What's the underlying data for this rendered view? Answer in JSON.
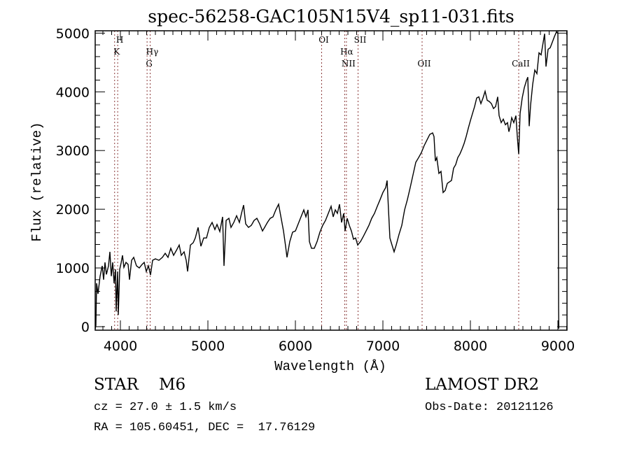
{
  "chart_data": {
    "type": "line",
    "title": "spec-56258-GAC105N15V4_sp11-031.fits",
    "xlabel": "Wavelength (Å)",
    "ylabel": "Flux (relative)",
    "xlim": [
      3712,
      9104
    ],
    "ylim": [
      -60,
      5040
    ],
    "xticks": [
      4000,
      5000,
      6000,
      7000,
      8000,
      9000
    ],
    "xtick_labels": [
      "4000",
      "5000",
      "6000",
      "7000",
      "8000",
      "9000"
    ],
    "x_minor_step": 100,
    "yticks": [
      0,
      1000,
      2000,
      3000,
      4000,
      5000
    ],
    "ytick_labels": [
      "0",
      "1000",
      "2000",
      "3000",
      "4000",
      "5000"
    ],
    "y_minor_step": 200,
    "grid": false,
    "line_color": "#000000",
    "marker_color": "#8b3a3a",
    "series": [
      {
        "name": "spectrum",
        "x": [
          3712,
          3720,
          3728,
          3744,
          3768,
          3792,
          3808,
          3824,
          3840,
          3864,
          3880,
          3896,
          3912,
          3928,
          3944,
          3952,
          3968,
          3976,
          3992,
          4008,
          4024,
          4040,
          4064,
          4088,
          4104,
          4128,
          4152,
          4184,
          4216,
          4248,
          4272,
          4296,
          4320,
          4344,
          4368,
          4400,
          4440,
          4480,
          4512,
          4544,
          4576,
          4608,
          4640,
          4672,
          4696,
          4728,
          4752,
          4768,
          4800,
          4832,
          4856,
          4888,
          4920,
          4952,
          4984,
          5016,
          5048,
          5080,
          5104,
          5136,
          5168,
          5184,
          5208,
          5240,
          5264,
          5296,
          5328,
          5360,
          5384,
          5408,
          5432,
          5464,
          5496,
          5528,
          5560,
          5592,
          5624,
          5648,
          5680,
          5712,
          5744,
          5776,
          5808,
          5832,
          5864,
          5888,
          5904,
          5936,
          5968,
          6000,
          6032,
          6064,
          6096,
          6120,
          6144,
          6160,
          6184,
          6216,
          6248,
          6280,
          6312,
          6344,
          6376,
          6408,
          6432,
          6456,
          6480,
          6504,
          6528,
          6552,
          6568,
          6592,
          6616,
          6640,
          6664,
          6688,
          6712,
          6744,
          6776,
          6808,
          6840,
          6872,
          6904,
          6936,
          6968,
          7000,
          7032,
          7048,
          7064,
          7080,
          7104,
          7128,
          7152,
          7184,
          7216,
          7248,
          7280,
          7312,
          7344,
          7376,
          7408,
          7440,
          7472,
          7504,
          7536,
          7568,
          7584,
          7600,
          7616,
          7640,
          7664,
          7688,
          7712,
          7736,
          7760,
          7784,
          7808,
          7832,
          7856,
          7880,
          7904,
          7928,
          7952,
          7976,
          8000,
          8024,
          8048,
          8072,
          8096,
          8120,
          8144,
          8168,
          8192,
          8216,
          8240,
          8264,
          8288,
          8312,
          8328,
          8352,
          8376,
          8400,
          8424,
          8440,
          8456,
          8472,
          8496,
          8520,
          8536,
          8552,
          8568,
          8592,
          8616,
          8640,
          8656,
          8672,
          8688,
          8712,
          8736,
          8760,
          8784,
          8808,
          8832,
          8848,
          8864,
          8888,
          8912,
          8936,
          8960,
          8984,
          9000,
          9008,
          9010
        ],
        "y": [
          -40,
          25,
          740,
          560,
          860,
          1035,
          800,
          1095,
          890,
          1035,
          1275,
          860,
          1095,
          740,
          975,
          260,
          940,
          200,
          975,
          1085,
          1215,
          1010,
          1095,
          1060,
          800,
          1130,
          1180,
          1035,
          1000,
          1060,
          1095,
          940,
          1035,
          880,
          1130,
          1155,
          1130,
          1180,
          1250,
          1180,
          1335,
          1215,
          1300,
          1390,
          1215,
          1275,
          1130,
          940,
          1390,
          1430,
          1510,
          1690,
          1370,
          1510,
          1510,
          1690,
          1775,
          1655,
          1740,
          1620,
          1870,
          1035,
          1810,
          1845,
          1690,
          1775,
          1890,
          1775,
          1930,
          2070,
          1750,
          1690,
          1725,
          1810,
          1845,
          1750,
          1630,
          1690,
          1775,
          1845,
          1870,
          1990,
          2085,
          1890,
          1630,
          1370,
          1180,
          1450,
          1610,
          1630,
          1750,
          1870,
          1990,
          1870,
          1990,
          1450,
          1335,
          1335,
          1450,
          1610,
          1725,
          1810,
          1930,
          2050,
          1870,
          1990,
          1930,
          2085,
          1775,
          1930,
          1630,
          1845,
          1725,
          1630,
          1490,
          1510,
          1390,
          1450,
          1535,
          1630,
          1725,
          1845,
          1930,
          2050,
          2165,
          2285,
          2370,
          2490,
          1990,
          1510,
          1390,
          1275,
          1390,
          1570,
          1725,
          1990,
          2165,
          2370,
          2585,
          2800,
          2880,
          2965,
          3085,
          3180,
          3275,
          3300,
          3240,
          2820,
          2880,
          2610,
          2645,
          2285,
          2320,
          2440,
          2465,
          2490,
          2700,
          2760,
          2880,
          2940,
          3025,
          3120,
          3240,
          3380,
          3510,
          3630,
          3750,
          3895,
          3915,
          3800,
          3895,
          4010,
          3855,
          3835,
          3800,
          3715,
          3750,
          3915,
          3595,
          3475,
          3535,
          3440,
          3475,
          3320,
          3415,
          3560,
          3475,
          3595,
          3240,
          2940,
          3630,
          3895,
          4070,
          4190,
          4250,
          3415,
          3775,
          4130,
          4370,
          4310,
          4665,
          4630,
          4845,
          4990,
          4430,
          4725,
          4750,
          4845,
          4940,
          5025,
          4990,
          320,
          -35
        ]
      }
    ],
    "line_markers": [
      {
        "wavelength": 3934,
        "label": "K",
        "row": 2
      },
      {
        "wavelength": 3969,
        "label": "H",
        "row": 1
      },
      {
        "wavelength": 4305,
        "label": "G",
        "row": 3
      },
      {
        "wavelength": 4340,
        "label": "Hγ",
        "row": 2
      },
      {
        "wavelength": 6300,
        "label": "OI",
        "row": 1
      },
      {
        "wavelength": 6563,
        "label": "Hα",
        "row": 2
      },
      {
        "wavelength": 6583,
        "label": "NII",
        "row": 3
      },
      {
        "wavelength": 6716,
        "label": "SII",
        "row": 1
      },
      {
        "wavelength": 7448,
        "label": "OII",
        "row": 3
      },
      {
        "wavelength": 8552,
        "label": "CaII",
        "row": 3
      }
    ]
  },
  "info": {
    "object_type": "STAR    M6",
    "cz": "cz = 27.0 ± 1.5 km/s",
    "ra_dec": "RA = 105.60451, DEC =  17.76129",
    "survey": "LAMOST DR2",
    "obs_date": "Obs-Date: 20121126"
  }
}
